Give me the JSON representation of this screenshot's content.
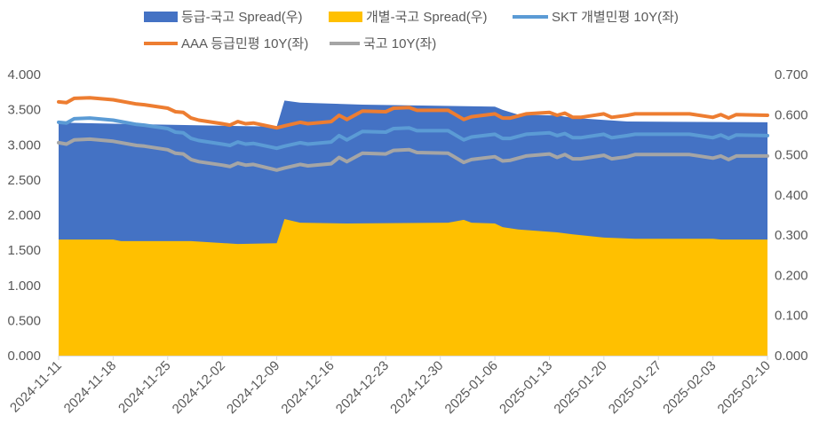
{
  "chart_data": {
    "type": "area+line",
    "title": "",
    "xlabel": "",
    "ylabel_left": "",
    "ylabel_right": "",
    "ylim_left": [
      0,
      4.0
    ],
    "ylim_right": [
      0,
      0.7
    ],
    "yticks_left": [
      "0.000",
      "0.500",
      "1.000",
      "1.500",
      "2.000",
      "2.500",
      "3.000",
      "3.500",
      "4.000"
    ],
    "yticks_right": [
      "0.000",
      "0.100",
      "0.200",
      "0.300",
      "0.400",
      "0.500",
      "0.600",
      "0.700"
    ],
    "xlim": [
      "2024-11-11",
      "2025-02-10"
    ],
    "xticks": [
      "2024-11-11",
      "2024-11-18",
      "2024-11-25",
      "2024-12-02",
      "2024-12-09",
      "2024-12-16",
      "2024-12-23",
      "2024-12-30",
      "2025-01-06",
      "2025-01-13",
      "2025-01-20",
      "2025-01-27",
      "2025-02-03",
      "2025-02-10"
    ],
    "grid": false,
    "legend_position": "top",
    "series": [
      {
        "name": "등급-국고 Spread(우)",
        "type": "area",
        "axis": "right",
        "color": "#4472C4",
        "points": [
          [
            "2024-11-11",
            0.58
          ],
          [
            "2024-12-09",
            0.57
          ],
          [
            "2024-12-10",
            0.635
          ],
          [
            "2024-12-12",
            0.63
          ],
          [
            "2024-12-20",
            0.625
          ],
          [
            "2025-01-06",
            0.62
          ],
          [
            "2025-01-07",
            0.612
          ],
          [
            "2025-01-09",
            0.6
          ],
          [
            "2025-01-14",
            0.598
          ],
          [
            "2025-01-16",
            0.592
          ],
          [
            "2025-01-23",
            0.583
          ],
          [
            "2025-02-10",
            0.581
          ]
        ]
      },
      {
        "name": "개별-국고 Spread(우)",
        "type": "area",
        "axis": "right",
        "color": "#FFC000",
        "points": [
          [
            "2024-11-11",
            0.289
          ],
          [
            "2024-11-18",
            0.289
          ],
          [
            "2024-11-19",
            0.285
          ],
          [
            "2024-11-28",
            0.285
          ],
          [
            "2024-12-04",
            0.278
          ],
          [
            "2024-12-09",
            0.28
          ],
          [
            "2024-12-10",
            0.34
          ],
          [
            "2024-12-12",
            0.331
          ],
          [
            "2024-12-18",
            0.329
          ],
          [
            "2024-12-31",
            0.331
          ],
          [
            "2025-01-02",
            0.338
          ],
          [
            "2025-01-03",
            0.331
          ],
          [
            "2025-01-06",
            0.329
          ],
          [
            "2025-01-07",
            0.32
          ],
          [
            "2025-01-09",
            0.314
          ],
          [
            "2025-01-14",
            0.307
          ],
          [
            "2025-01-16",
            0.302
          ],
          [
            "2025-01-20",
            0.294
          ],
          [
            "2025-01-24",
            0.291
          ],
          [
            "2025-02-03",
            0.291
          ],
          [
            "2025-02-04",
            0.289
          ],
          [
            "2025-02-10",
            0.289
          ]
        ]
      },
      {
        "name": "SKT 개별민평 10Y(좌)",
        "type": "line",
        "axis": "left",
        "color": "#5B9BD5",
        "points": [
          [
            "2024-11-11",
            3.32
          ],
          [
            "2024-11-12",
            3.31
          ],
          [
            "2024-11-13",
            3.37
          ],
          [
            "2024-11-15",
            3.38
          ],
          [
            "2024-11-18",
            3.35
          ],
          [
            "2024-11-21",
            3.29
          ],
          [
            "2024-11-22",
            3.28
          ],
          [
            "2024-11-25",
            3.23
          ],
          [
            "2024-11-26",
            3.18
          ],
          [
            "2024-11-27",
            3.17
          ],
          [
            "2024-11-28",
            3.09
          ],
          [
            "2024-11-29",
            3.06
          ],
          [
            "2024-12-02",
            3.01
          ],
          [
            "2024-12-03",
            2.99
          ],
          [
            "2024-12-04",
            3.04
          ],
          [
            "2024-12-05",
            3.01
          ],
          [
            "2024-12-06",
            3.02
          ],
          [
            "2024-12-09",
            2.95
          ],
          [
            "2024-12-10",
            2.98
          ],
          [
            "2024-12-12",
            3.03
          ],
          [
            "2024-12-13",
            3.01
          ],
          [
            "2024-12-16",
            3.04
          ],
          [
            "2024-12-17",
            3.13
          ],
          [
            "2024-12-18",
            3.07
          ],
          [
            "2024-12-20",
            3.19
          ],
          [
            "2024-12-23",
            3.18
          ],
          [
            "2024-12-24",
            3.23
          ],
          [
            "2024-12-26",
            3.24
          ],
          [
            "2024-12-27",
            3.2
          ],
          [
            "2024-12-31",
            3.2
          ],
          [
            "2025-01-02",
            3.07
          ],
          [
            "2025-01-03",
            3.11
          ],
          [
            "2025-01-06",
            3.15
          ],
          [
            "2025-01-07",
            3.09
          ],
          [
            "2025-01-08",
            3.09
          ],
          [
            "2025-01-10",
            3.15
          ],
          [
            "2025-01-13",
            3.17
          ],
          [
            "2025-01-14",
            3.13
          ],
          [
            "2025-01-15",
            3.16
          ],
          [
            "2025-01-16",
            3.1
          ],
          [
            "2025-01-17",
            3.1
          ],
          [
            "2025-01-20",
            3.15
          ],
          [
            "2025-01-21",
            3.1
          ],
          [
            "2025-01-23",
            3.13
          ],
          [
            "2025-01-24",
            3.15
          ],
          [
            "2025-01-31",
            3.15
          ],
          [
            "2025-02-03",
            3.1
          ],
          [
            "2025-02-04",
            3.14
          ],
          [
            "2025-02-05",
            3.09
          ],
          [
            "2025-02-06",
            3.14
          ],
          [
            "2025-02-10",
            3.13
          ]
        ]
      },
      {
        "name": "AAA 등급민평 10Y(좌)",
        "type": "line",
        "axis": "left",
        "color": "#ED7D31",
        "points": [
          [
            "2024-11-11",
            3.61
          ],
          [
            "2024-11-12",
            3.6
          ],
          [
            "2024-11-13",
            3.66
          ],
          [
            "2024-11-15",
            3.67
          ],
          [
            "2024-11-18",
            3.64
          ],
          [
            "2024-11-21",
            3.58
          ],
          [
            "2024-11-22",
            3.57
          ],
          [
            "2024-11-25",
            3.52
          ],
          [
            "2024-11-26",
            3.47
          ],
          [
            "2024-11-27",
            3.46
          ],
          [
            "2024-11-28",
            3.38
          ],
          [
            "2024-11-29",
            3.35
          ],
          [
            "2024-12-02",
            3.3
          ],
          [
            "2024-12-03",
            3.28
          ],
          [
            "2024-12-04",
            3.33
          ],
          [
            "2024-12-05",
            3.3
          ],
          [
            "2024-12-06",
            3.31
          ],
          [
            "2024-12-09",
            3.24
          ],
          [
            "2024-12-10",
            3.27
          ],
          [
            "2024-12-12",
            3.32
          ],
          [
            "2024-12-13",
            3.3
          ],
          [
            "2024-12-16",
            3.33
          ],
          [
            "2024-12-17",
            3.42
          ],
          [
            "2024-12-18",
            3.36
          ],
          [
            "2024-12-20",
            3.48
          ],
          [
            "2024-12-23",
            3.47
          ],
          [
            "2024-12-24",
            3.52
          ],
          [
            "2024-12-26",
            3.53
          ],
          [
            "2024-12-27",
            3.49
          ],
          [
            "2024-12-31",
            3.49
          ],
          [
            "2025-01-02",
            3.36
          ],
          [
            "2025-01-03",
            3.4
          ],
          [
            "2025-01-06",
            3.44
          ],
          [
            "2025-01-07",
            3.38
          ],
          [
            "2025-01-08",
            3.38
          ],
          [
            "2025-01-10",
            3.44
          ],
          [
            "2025-01-13",
            3.46
          ],
          [
            "2025-01-14",
            3.42
          ],
          [
            "2025-01-15",
            3.45
          ],
          [
            "2025-01-16",
            3.39
          ],
          [
            "2025-01-17",
            3.39
          ],
          [
            "2025-01-20",
            3.44
          ],
          [
            "2025-01-21",
            3.39
          ],
          [
            "2025-01-23",
            3.42
          ],
          [
            "2025-01-24",
            3.44
          ],
          [
            "2025-01-31",
            3.44
          ],
          [
            "2025-02-03",
            3.39
          ],
          [
            "2025-02-04",
            3.43
          ],
          [
            "2025-02-05",
            3.38
          ],
          [
            "2025-02-06",
            3.43
          ],
          [
            "2025-02-10",
            3.42
          ]
        ]
      },
      {
        "name": "국고 10Y(좌)",
        "type": "line",
        "axis": "left",
        "color": "#A5A5A5",
        "points": [
          [
            "2024-11-11",
            3.03
          ],
          [
            "2024-11-12",
            3.01
          ],
          [
            "2024-11-13",
            3.07
          ],
          [
            "2024-11-15",
            3.08
          ],
          [
            "2024-11-18",
            3.05
          ],
          [
            "2024-11-21",
            2.99
          ],
          [
            "2024-11-22",
            2.98
          ],
          [
            "2024-11-25",
            2.93
          ],
          [
            "2024-11-26",
            2.88
          ],
          [
            "2024-11-27",
            2.87
          ],
          [
            "2024-11-28",
            2.79
          ],
          [
            "2024-11-29",
            2.76
          ],
          [
            "2024-12-02",
            2.71
          ],
          [
            "2024-12-03",
            2.69
          ],
          [
            "2024-12-04",
            2.74
          ],
          [
            "2024-12-05",
            2.71
          ],
          [
            "2024-12-06",
            2.72
          ],
          [
            "2024-12-09",
            2.64
          ],
          [
            "2024-12-10",
            2.67
          ],
          [
            "2024-12-12",
            2.72
          ],
          [
            "2024-12-13",
            2.7
          ],
          [
            "2024-12-16",
            2.73
          ],
          [
            "2024-12-17",
            2.82
          ],
          [
            "2024-12-18",
            2.76
          ],
          [
            "2024-12-20",
            2.88
          ],
          [
            "2024-12-23",
            2.87
          ],
          [
            "2024-12-24",
            2.92
          ],
          [
            "2024-12-26",
            2.93
          ],
          [
            "2024-12-27",
            2.89
          ],
          [
            "2024-12-31",
            2.88
          ],
          [
            "2025-01-02",
            2.75
          ],
          [
            "2025-01-03",
            2.79
          ],
          [
            "2025-01-06",
            2.83
          ],
          [
            "2025-01-07",
            2.77
          ],
          [
            "2025-01-08",
            2.78
          ],
          [
            "2025-01-10",
            2.84
          ],
          [
            "2025-01-13",
            2.87
          ],
          [
            "2025-01-14",
            2.82
          ],
          [
            "2025-01-15",
            2.86
          ],
          [
            "2025-01-16",
            2.8
          ],
          [
            "2025-01-17",
            2.8
          ],
          [
            "2025-01-20",
            2.85
          ],
          [
            "2025-01-21",
            2.8
          ],
          [
            "2025-01-23",
            2.83
          ],
          [
            "2025-01-24",
            2.86
          ],
          [
            "2025-01-31",
            2.86
          ],
          [
            "2025-02-03",
            2.81
          ],
          [
            "2025-02-04",
            2.84
          ],
          [
            "2025-02-05",
            2.79
          ],
          [
            "2025-02-06",
            2.84
          ],
          [
            "2025-02-10",
            2.84
          ]
        ]
      }
    ]
  }
}
